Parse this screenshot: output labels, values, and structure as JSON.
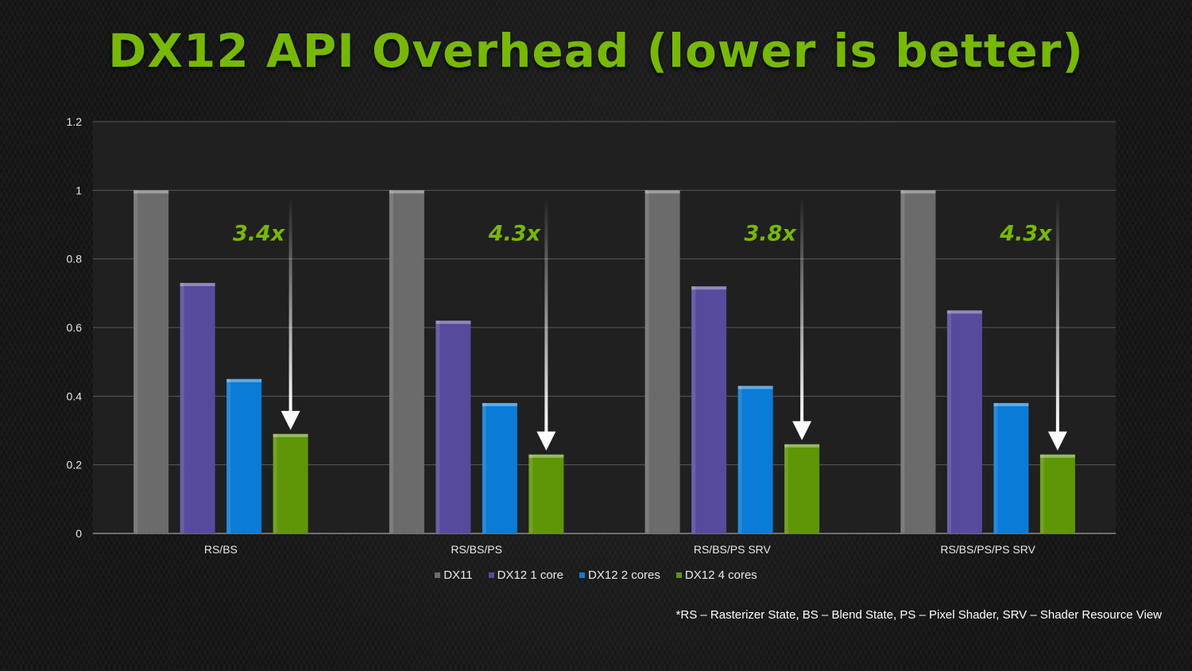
{
  "slide": {
    "title": "DX12 API Overhead (lower is better)",
    "footnote": "*RS – Rasterizer State, BS – Blend State, PS – Pixel Shader, SRV – Shader Resource View"
  },
  "chart_data": {
    "type": "bar",
    "categories": [
      "RS/BS",
      "RS/BS/PS",
      "RS/BS/PS SRV",
      "RS/BS/PS/PS SRV"
    ],
    "series": [
      {
        "name": "DX11",
        "color": "#6b6b6b",
        "values": [
          1.0,
          1.0,
          1.0,
          1.0
        ]
      },
      {
        "name": "DX12 1 core",
        "color": "#564a9c",
        "values": [
          0.73,
          0.62,
          0.72,
          0.65
        ]
      },
      {
        "name": "DX12 2 cores",
        "color": "#0a7cd8",
        "values": [
          0.45,
          0.38,
          0.43,
          0.38
        ]
      },
      {
        "name": "DX12 4 cores",
        "color": "#5e9606",
        "values": [
          0.29,
          0.23,
          0.26,
          0.23
        ]
      }
    ],
    "yticks": [
      "0",
      "0.2",
      "0.4",
      "0.6",
      "0.8",
      "1",
      "1.2"
    ],
    "ylim": [
      0,
      1.2
    ],
    "grid": true,
    "legend": "bottom",
    "annotations": [
      "3.4x",
      "4.3x",
      "3.8x",
      "4.3x"
    ],
    "annotation_color": "#76b900"
  }
}
